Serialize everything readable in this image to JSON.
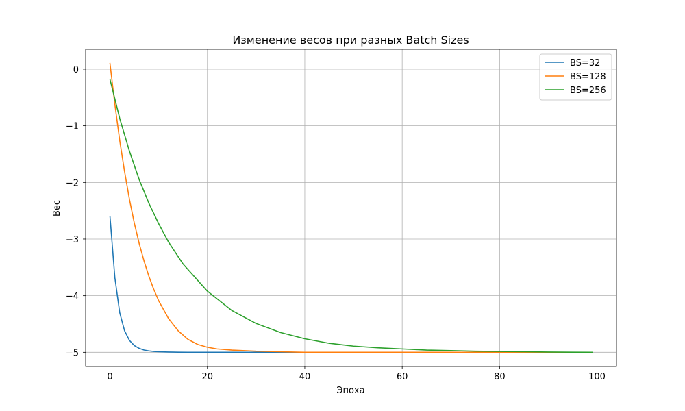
{
  "chart_data": {
    "type": "line",
    "title": "Изменение весов при разных Batch Sizes",
    "xlabel": "Эпоха",
    "ylabel": "Вес",
    "xlim": [
      -5,
      104
    ],
    "ylim": [
      -5.25,
      0.35
    ],
    "xticks": [
      0,
      20,
      40,
      60,
      80,
      100
    ],
    "xtick_labels": [
      "0",
      "20",
      "40",
      "60",
      "80",
      "100"
    ],
    "yticks": [
      0,
      -1,
      -2,
      -3,
      -4,
      -5
    ],
    "ytick_labels": [
      "0",
      "−1",
      "−2",
      "−3",
      "−4",
      "−5"
    ],
    "grid": true,
    "legend_position": "top-right",
    "series": [
      {
        "name": "BS=32",
        "color": "#1f77b4",
        "x": [
          0,
          1,
          2,
          3,
          4,
          5,
          6,
          7,
          8,
          9,
          10,
          12,
          14,
          16,
          18,
          20,
          25,
          30,
          40,
          50,
          60,
          70,
          80,
          90,
          99
        ],
        "y": [
          -2.6,
          -3.68,
          -4.3,
          -4.62,
          -4.79,
          -4.88,
          -4.93,
          -4.96,
          -4.975,
          -4.985,
          -4.99,
          -4.995,
          -4.998,
          -4.999,
          -5.0,
          -5.0,
          -5.0,
          -5.0,
          -5.0,
          -5.0,
          -5.0,
          -5.0,
          -5.0,
          -5.0,
          -5.0
        ]
      },
      {
        "name": "BS=128",
        "color": "#ff7f0e",
        "x": [
          0,
          1,
          2,
          3,
          4,
          5,
          6,
          7,
          8,
          9,
          10,
          12,
          14,
          16,
          18,
          20,
          22,
          25,
          30,
          35,
          40,
          50,
          60,
          70,
          80,
          90,
          99
        ],
        "y": [
          0.1,
          -0.62,
          -1.26,
          -1.81,
          -2.3,
          -2.72,
          -3.08,
          -3.39,
          -3.66,
          -3.89,
          -4.09,
          -4.4,
          -4.62,
          -4.77,
          -4.86,
          -4.91,
          -4.94,
          -4.96,
          -4.98,
          -4.99,
          -5.0,
          -5.0,
          -5.0,
          -5.0,
          -5.0,
          -5.0,
          -5.0
        ]
      },
      {
        "name": "BS=256",
        "color": "#2ca02c",
        "x": [
          0,
          2,
          4,
          6,
          8,
          10,
          12,
          15,
          20,
          25,
          30,
          35,
          40,
          45,
          50,
          55,
          60,
          65,
          70,
          75,
          80,
          85,
          90,
          95,
          99
        ],
        "y": [
          -0.18,
          -0.87,
          -1.45,
          -1.95,
          -2.37,
          -2.73,
          -3.05,
          -3.44,
          -3.92,
          -4.26,
          -4.49,
          -4.65,
          -4.76,
          -4.84,
          -4.89,
          -4.92,
          -4.94,
          -4.96,
          -4.97,
          -4.98,
          -4.985,
          -4.99,
          -4.995,
          -4.998,
          -5.0
        ]
      }
    ]
  }
}
